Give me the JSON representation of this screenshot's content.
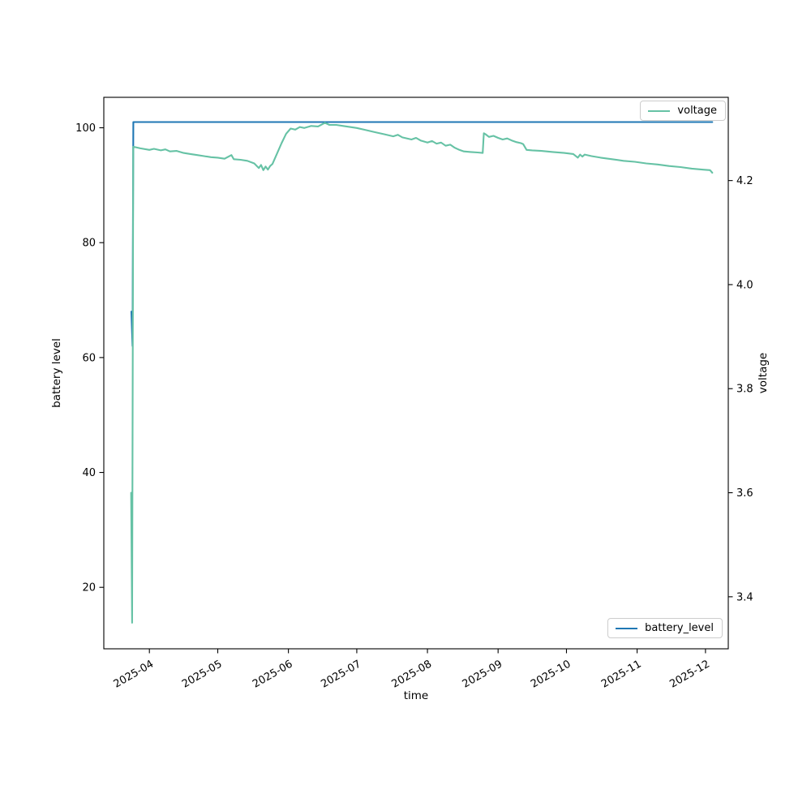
{
  "figure": {
    "background": "#ffffff",
    "frame_color": "#000000"
  },
  "chart_data": {
    "type": "line",
    "title": "",
    "xlabel": "time",
    "ylabel_left": "battery level",
    "ylabel_right": "voltage",
    "grid": false,
    "x_ticks": [
      "2025-04",
      "2025-05",
      "2025-06",
      "2025-07",
      "2025-08",
      "2025-09",
      "2025-10",
      "2025-11",
      "2025-12"
    ],
    "y_left_ticks": [
      "20",
      "40",
      "60",
      "80",
      "100"
    ],
    "y_right_ticks": [
      "3.4",
      "3.6",
      "3.8",
      "4.0",
      "4.2"
    ],
    "xlim": [
      "2025-03-12T00:00:00",
      "2025-12-11T00:00:00"
    ],
    "ylim_left": [
      9.3,
      105.3
    ],
    "ylim_right": [
      3.3,
      4.36
    ],
    "legends": [
      {
        "label": "voltage",
        "position": "upper right"
      },
      {
        "label": "battery_level",
        "position": "lower right"
      }
    ],
    "series": [
      {
        "name": "battery_level",
        "axis": "left",
        "color": "#1f77b4",
        "points": [
          [
            "2025-03-24T02:00:00",
            68
          ],
          [
            "2025-03-24T14:00:00",
            62
          ],
          [
            "2025-03-24T23:00:00",
            101
          ],
          [
            "2025-12-04T00:00:00",
            101
          ]
        ]
      },
      {
        "name": "voltage",
        "axis": "right",
        "color": "#66c2a5",
        "points": [
          [
            "2025-03-24T00:00:00",
            3.6
          ],
          [
            "2025-03-24T10:00:00",
            3.35
          ],
          [
            "2025-03-24T22:00:00",
            4.265
          ],
          [
            "2025-03-28T00:00:00",
            4.262
          ],
          [
            "2025-04-01T00:00:00",
            4.259
          ],
          [
            "2025-04-03T00:00:00",
            4.261
          ],
          [
            "2025-04-06T00:00:00",
            4.258
          ],
          [
            "2025-04-08T00:00:00",
            4.26
          ],
          [
            "2025-04-10T00:00:00",
            4.256
          ],
          [
            "2025-04-13T00:00:00",
            4.257
          ],
          [
            "2025-04-16T00:00:00",
            4.253
          ],
          [
            "2025-04-19T00:00:00",
            4.251
          ],
          [
            "2025-04-22T00:00:00",
            4.249
          ],
          [
            "2025-04-25T00:00:00",
            4.247
          ],
          [
            "2025-04-28T00:00:00",
            4.245
          ],
          [
            "2025-05-01T00:00:00",
            4.244
          ],
          [
            "2025-05-04T00:00:00",
            4.242
          ],
          [
            "2025-05-07T00:00:00",
            4.249
          ],
          [
            "2025-05-08T00:00:00",
            4.241
          ],
          [
            "2025-05-11T00:00:00",
            4.24
          ],
          [
            "2025-05-14T00:00:00",
            4.238
          ],
          [
            "2025-05-17T00:00:00",
            4.233
          ],
          [
            "2025-05-19T00:00:00",
            4.224
          ],
          [
            "2025-05-20T00:00:00",
            4.23
          ],
          [
            "2025-05-21T00:00:00",
            4.22
          ],
          [
            "2025-05-22T00:00:00",
            4.227
          ],
          [
            "2025-05-23T00:00:00",
            4.221
          ],
          [
            "2025-05-24T00:00:00",
            4.228
          ],
          [
            "2025-05-25T00:00:00",
            4.232
          ],
          [
            "2025-05-27T00:00:00",
            4.252
          ],
          [
            "2025-05-29T00:00:00",
            4.272
          ],
          [
            "2025-05-31T00:00:00",
            4.29
          ],
          [
            "2025-06-02T00:00:00",
            4.3
          ],
          [
            "2025-06-04T00:00:00",
            4.298
          ],
          [
            "2025-06-06T00:00:00",
            4.303
          ],
          [
            "2025-06-08T00:00:00",
            4.301
          ],
          [
            "2025-06-11T00:00:00",
            4.305
          ],
          [
            "2025-06-14T00:00:00",
            4.304
          ],
          [
            "2025-06-17T00:00:00",
            4.311
          ],
          [
            "2025-06-19T00:00:00",
            4.307
          ],
          [
            "2025-06-22T00:00:00",
            4.307
          ],
          [
            "2025-06-25T00:00:00",
            4.305
          ],
          [
            "2025-06-28T00:00:00",
            4.303
          ],
          [
            "2025-07-01T00:00:00",
            4.301
          ],
          [
            "2025-07-05T00:00:00",
            4.297
          ],
          [
            "2025-07-09T00:00:00",
            4.293
          ],
          [
            "2025-07-13T00:00:00",
            4.289
          ],
          [
            "2025-07-17T00:00:00",
            4.285
          ],
          [
            "2025-07-19T00:00:00",
            4.288
          ],
          [
            "2025-07-21T00:00:00",
            4.283
          ],
          [
            "2025-07-25T00:00:00",
            4.279
          ],
          [
            "2025-07-27T00:00:00",
            4.282
          ],
          [
            "2025-07-29T00:00:00",
            4.277
          ],
          [
            "2025-08-01T00:00:00",
            4.273
          ],
          [
            "2025-08-03T00:00:00",
            4.276
          ],
          [
            "2025-08-05T00:00:00",
            4.271
          ],
          [
            "2025-08-07T00:00:00",
            4.273
          ],
          [
            "2025-08-09T00:00:00",
            4.267
          ],
          [
            "2025-08-11T00:00:00",
            4.269
          ],
          [
            "2025-08-13T00:00:00",
            4.263
          ],
          [
            "2025-08-15T00:00:00",
            4.259
          ],
          [
            "2025-08-17T00:00:00",
            4.256
          ],
          [
            "2025-08-20T00:00:00",
            4.255
          ],
          [
            "2025-08-23T00:00:00",
            4.254
          ],
          [
            "2025-08-25T06:00:00",
            4.253
          ],
          [
            "2025-08-25T18:00:00",
            4.291
          ],
          [
            "2025-08-26T12:00:00",
            4.289
          ],
          [
            "2025-08-28T00:00:00",
            4.284
          ],
          [
            "2025-08-30T00:00:00",
            4.286
          ],
          [
            "2025-09-01T00:00:00",
            4.282
          ],
          [
            "2025-09-03T00:00:00",
            4.279
          ],
          [
            "2025-09-05T00:00:00",
            4.281
          ],
          [
            "2025-09-07T00:00:00",
            4.277
          ],
          [
            "2025-09-09T00:00:00",
            4.274
          ],
          [
            "2025-09-11T00:00:00",
            4.272
          ],
          [
            "2025-09-12T00:00:00",
            4.27
          ],
          [
            "2025-09-13T12:00:00",
            4.259
          ],
          [
            "2025-09-16T00:00:00",
            4.258
          ],
          [
            "2025-09-20T00:00:00",
            4.257
          ],
          [
            "2025-09-25T00:00:00",
            4.255
          ],
          [
            "2025-09-30T00:00:00",
            4.253
          ],
          [
            "2025-10-04T00:00:00",
            4.251
          ],
          [
            "2025-10-06T00:00:00",
            4.244
          ],
          [
            "2025-10-07T00:00:00",
            4.25
          ],
          [
            "2025-10-08T00:00:00",
            4.246
          ],
          [
            "2025-10-09T00:00:00",
            4.25
          ],
          [
            "2025-10-12T00:00:00",
            4.247
          ],
          [
            "2025-10-16T00:00:00",
            4.244
          ],
          [
            "2025-10-21T00:00:00",
            4.241
          ],
          [
            "2025-10-26T00:00:00",
            4.238
          ],
          [
            "2025-10-31T00:00:00",
            4.236
          ],
          [
            "2025-11-05T00:00:00",
            4.233
          ],
          [
            "2025-11-10T00:00:00",
            4.231
          ],
          [
            "2025-11-15T00:00:00",
            4.228
          ],
          [
            "2025-11-20T00:00:00",
            4.226
          ],
          [
            "2025-11-25T00:00:00",
            4.223
          ],
          [
            "2025-11-30T00:00:00",
            4.221
          ],
          [
            "2025-12-03T00:00:00",
            4.22
          ],
          [
            "2025-12-04T00:00:00",
            4.215
          ]
        ]
      }
    ]
  }
}
